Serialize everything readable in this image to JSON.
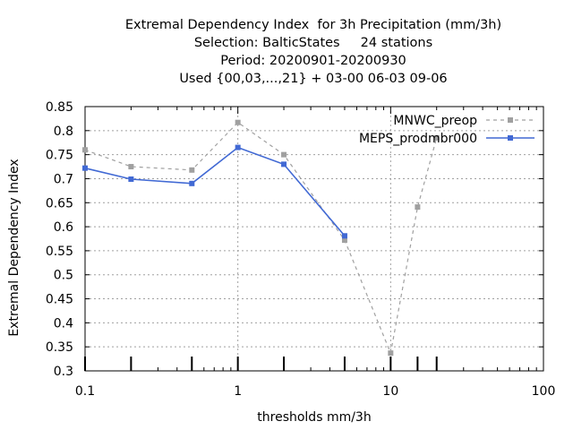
{
  "header": {
    "title_lines": [
      "Extremal Dependency Index  for 3h Precipitation (mm/3h)",
      "Selection: BalticStates     24 stations",
      "Period: 20200901-20200930",
      "Used {00,03,...,21} + 03-00 06-03 09-06"
    ]
  },
  "chart_data": {
    "type": "line",
    "xlabel": "thresholds mm/3h",
    "ylabel": "Extremal Dependency Index",
    "xscale": "log",
    "xlim": [
      0.1,
      100
    ],
    "ylim": [
      0.3,
      0.85
    ],
    "xticks": [
      0.1,
      1,
      10,
      100
    ],
    "xtick_labels": [
      "0.1",
      "1",
      "10",
      "100"
    ],
    "yticks": [
      0.3,
      0.35,
      0.4,
      0.45,
      0.5,
      0.55,
      0.6,
      0.65,
      0.7,
      0.75,
      0.8,
      0.85
    ],
    "ytick_labels": [
      "0.3",
      "0.35",
      "0.4",
      "0.45",
      "0.5",
      "0.55",
      "0.6",
      "0.65",
      "0.7",
      "0.75",
      "0.8",
      "0.85"
    ],
    "threshold_marks": [
      0.1,
      0.2,
      0.5,
      1,
      2,
      5,
      10,
      15,
      20
    ],
    "grid": true,
    "legend_position": "top-right",
    "series": [
      {
        "name": "MNWC_preop",
        "color": "#a0a0a0",
        "style": "dashed",
        "x": [
          0.1,
          0.2,
          0.5,
          1,
          2,
          5,
          10,
          15,
          20
        ],
        "y": [
          0.76,
          0.725,
          0.718,
          0.817,
          0.75,
          0.572,
          0.337,
          0.641,
          0.785
        ]
      },
      {
        "name": "MEPS_prodmbr000",
        "color": "#4169d4",
        "style": "solid",
        "x": [
          0.1,
          0.2,
          0.5,
          1,
          2,
          5
        ],
        "y": [
          0.722,
          0.699,
          0.69,
          0.765,
          0.73,
          0.581
        ]
      }
    ]
  }
}
